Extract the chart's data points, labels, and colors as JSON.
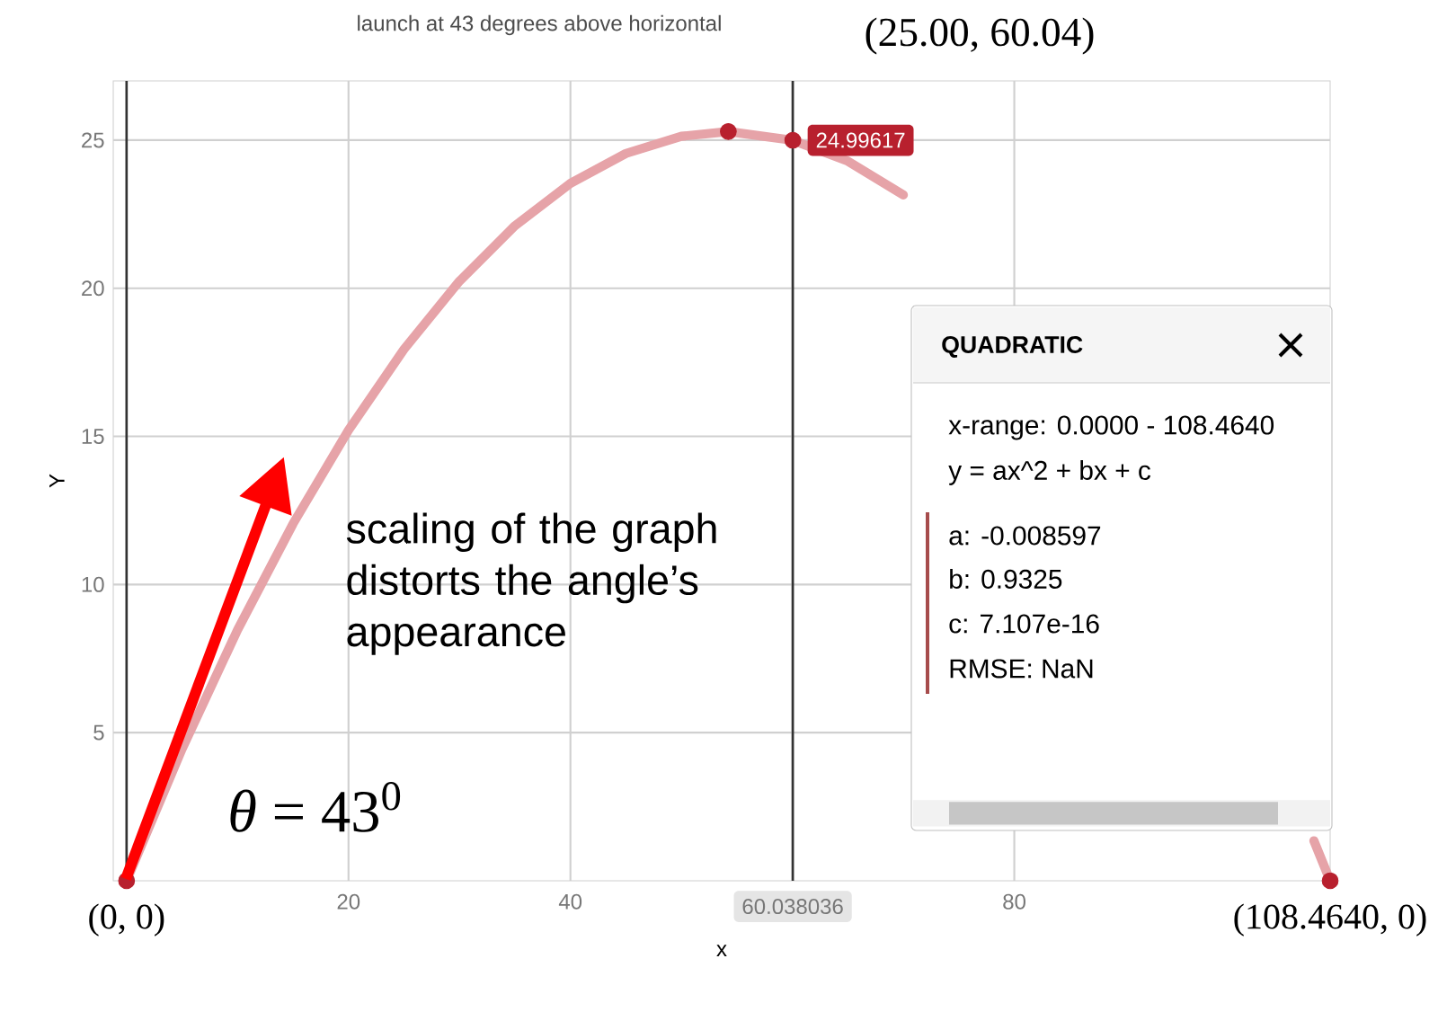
{
  "chart_data": {
    "type": "line",
    "title": "launch at 43 degrees above horizontal",
    "xlabel": "x",
    "ylabel": "Y",
    "xlim": [
      -1.2,
      108.464
    ],
    "ylim": [
      0,
      27
    ],
    "xticks": [
      20,
      40,
      {
        "value": 60,
        "label": null
      },
      80
    ],
    "yticks": [
      5,
      10,
      15,
      20,
      25
    ],
    "grid": true,
    "series": [
      {
        "color": "#e6a3a8",
        "x": [
          0,
          5,
          10,
          15,
          20,
          25,
          30,
          35,
          40,
          45,
          50,
          54.23,
          60,
          65,
          70,
          75,
          80,
          85,
          90,
          95,
          100,
          105,
          107,
          108.464
        ],
        "values": [
          0,
          4.45,
          8.47,
          12.05,
          15.21,
          17.94,
          20.24,
          22.11,
          23.54,
          24.55,
          25.13,
          25.29,
          25.0,
          24.29,
          23.15,
          null,
          null,
          null,
          null,
          null,
          null,
          null,
          1.35,
          0
        ]
      },
      {
        "type": "scatter",
        "color": "#b8202e",
        "marker": "circle",
        "x": [
          0,
          54.23,
          60.04,
          108.464
        ],
        "values": [
          0,
          25.29,
          24.99617,
          0
        ],
        "value_labels": [
          null,
          null,
          "24.99617",
          null
        ]
      }
    ],
    "ref_lines": [
      {
        "axis": "x",
        "value": 0,
        "color": "#333333"
      },
      {
        "axis": "x",
        "value": 60.038036,
        "label": "60.038036",
        "color": "#333333"
      }
    ],
    "annotations": [
      "(25.00, 60.04)",
      {
        "text": "(0, 0)",
        "x": 0,
        "y": 0
      },
      {
        "text": "(108.4640, 0)",
        "x": 108.464,
        "y": 0
      },
      "*θ* = 43$^{0}$",
      "scaling of the graph distorts the angle’s appearance",
      "QUADRATIC",
      "x-range: 0.0000 - 108.4640",
      "y = ax^2 + bx + c",
      "a: -0.008597",
      "b: 0.9325",
      "c: 7.107e-16",
      "RMSE: NaN"
    ]
  }
}
